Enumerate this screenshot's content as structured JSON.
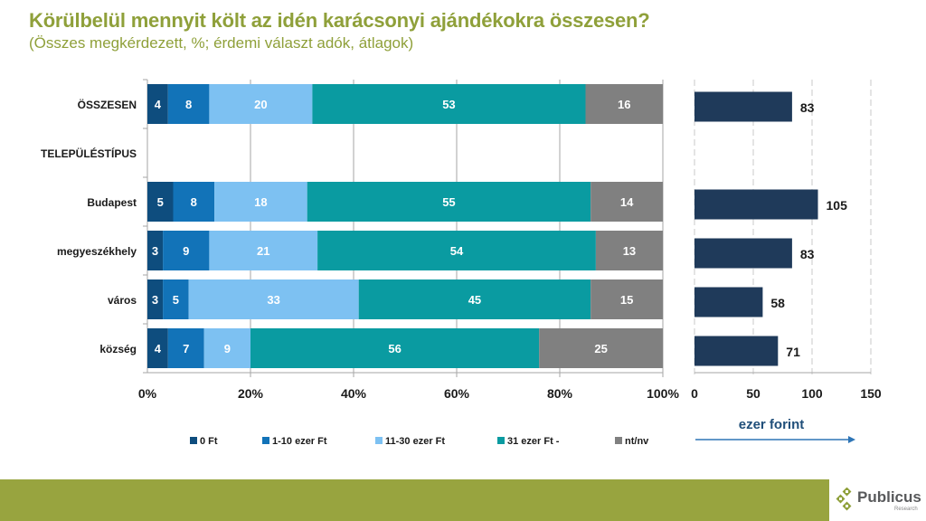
{
  "chart_data": [
    {
      "type": "bar",
      "orientation": "horizontal",
      "stacked": true,
      "title": "Körülbelül mennyit költ az idén karácsonyi ajándékokra összesen?",
      "subtitle": "(Összes megkérdezett, %; érdemi választ adók, átlagok)",
      "categories": [
        "ÖSSZESEN",
        "TELEPÜLÉSTÍPUS",
        "Budapest",
        "megyeszékhely",
        "város",
        "község"
      ],
      "series": [
        {
          "name": "0 Ft",
          "color": "#0e4d7e",
          "values": [
            4,
            null,
            5,
            3,
            3,
            4
          ]
        },
        {
          "name": "1-10 ezer Ft",
          "color": "#1273b8",
          "values": [
            8,
            null,
            8,
            9,
            5,
            7
          ]
        },
        {
          "name": "11-30 ezer Ft",
          "color": "#7dc1f2",
          "values": [
            20,
            null,
            18,
            21,
            33,
            9
          ]
        },
        {
          "name": "31 ezer Ft -",
          "color": "#0a9ba1",
          "values": [
            53,
            null,
            55,
            54,
            45,
            56
          ]
        },
        {
          "name": "nt/nv",
          "color": "#808080",
          "values": [
            16,
            null,
            14,
            13,
            15,
            25
          ]
        }
      ],
      "xlim": [
        0,
        100
      ],
      "xticks": [
        "0%",
        "20%",
        "40%",
        "60%",
        "80%",
        "100%"
      ],
      "grid": true,
      "legend": "bottom"
    },
    {
      "type": "bar",
      "orientation": "horizontal",
      "categories": [
        "ÖSSZESEN",
        "TELEPÜLÉSTÍPUS",
        "Budapest",
        "megyeszékhely",
        "város",
        "község"
      ],
      "values": [
        83,
        null,
        105,
        83,
        58,
        71
      ],
      "color": "#1f3a5a",
      "xlim": [
        0,
        150
      ],
      "xticks": [
        "0",
        "50",
        "100",
        "150"
      ],
      "xlabel": "ezer forint",
      "grid": "dashed"
    }
  ],
  "footer": {
    "logo_name": "Publicus",
    "logo_sub": "Research"
  }
}
